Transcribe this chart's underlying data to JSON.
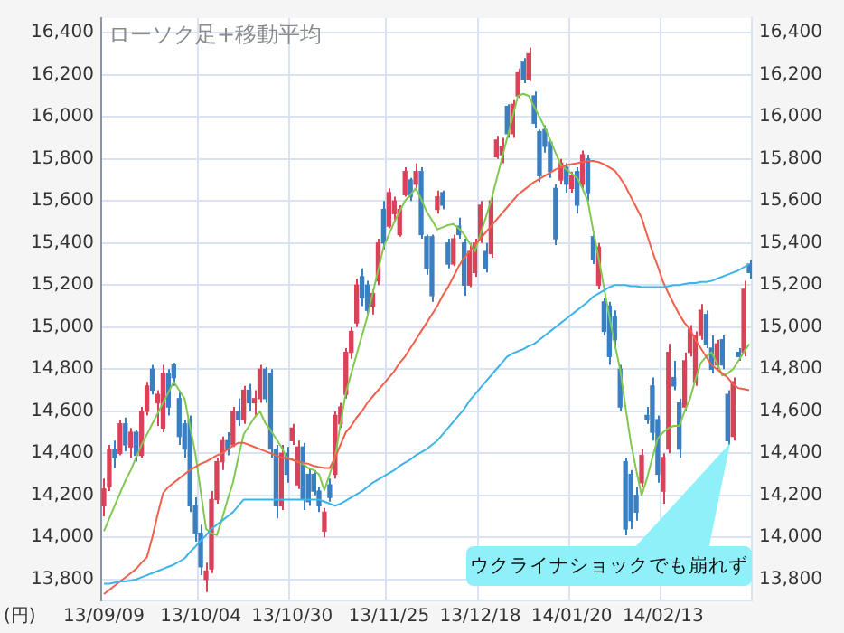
{
  "chart_data": {
    "type": "candlestick",
    "title": "ローソク足+移動平均",
    "ylabel": "(円)",
    "categories": [
      "13/09/09",
      null,
      null,
      null,
      null,
      null,
      null,
      null,
      null,
      null,
      null,
      null,
      null,
      null,
      null,
      null,
      null,
      null,
      "13/10/04",
      null,
      null,
      null,
      null,
      null,
      null,
      null,
      null,
      null,
      null,
      null,
      null,
      null,
      null,
      null,
      null,
      "13/10/30",
      null,
      null,
      null,
      null,
      null,
      null,
      null,
      null,
      null,
      null,
      null,
      null,
      null,
      null,
      null,
      null,
      null,
      "13/11/25",
      null,
      null,
      null,
      null,
      null,
      null,
      null,
      null,
      null,
      null,
      null,
      null,
      null,
      null,
      null,
      null,
      "13/12/18",
      null,
      null,
      null,
      null,
      null,
      null,
      null,
      null,
      null,
      null,
      null,
      null,
      null,
      null,
      null,
      null,
      "14/01/20",
      null,
      null,
      null,
      null,
      null,
      null,
      null,
      null,
      null,
      null,
      null,
      null,
      null,
      null,
      null,
      null,
      "14/02/13",
      null,
      null,
      null,
      null,
      null,
      null,
      null,
      null,
      null,
      null,
      null,
      null,
      null,
      null,
      null,
      null
    ],
    "ohlc": [
      [
        14150,
        14280,
        14100,
        14230
      ],
      [
        14240,
        14440,
        14220,
        14420
      ],
      [
        14420,
        14460,
        14330,
        14380
      ],
      [
        14400,
        14560,
        14390,
        14540
      ],
      [
        14540,
        14570,
        14410,
        14440
      ],
      [
        14430,
        14520,
        14380,
        14500
      ],
      [
        14500,
        14510,
        14360,
        14390
      ],
      [
        14390,
        14620,
        14380,
        14600
      ],
      [
        14600,
        14740,
        14580,
        14720
      ],
      [
        14800,
        14820,
        14680,
        14700
      ],
      [
        14640,
        14700,
        14530,
        14680
      ],
      [
        14520,
        14820,
        14500,
        14780
      ],
      [
        14780,
        14800,
        14580,
        14620
      ],
      [
        14820,
        14830,
        14720,
        14760
      ],
      [
        14660,
        14690,
        14440,
        14480
      ],
      [
        14540,
        14560,
        14380,
        14420
      ],
      [
        14560,
        14580,
        14120,
        14150
      ],
      [
        14150,
        14190,
        13980,
        14020
      ],
      [
        14020,
        14060,
        13820,
        13860
      ],
      [
        13800,
        13880,
        13740,
        13840
      ],
      [
        13850,
        14220,
        13830,
        14180
      ],
      [
        14180,
        14380,
        14160,
        14360
      ],
      [
        14360,
        14480,
        14320,
        14460
      ],
      [
        14460,
        14500,
        14390,
        14420
      ],
      [
        14440,
        14620,
        14430,
        14600
      ],
      [
        14600,
        14660,
        14530,
        14560
      ],
      [
        14560,
        14720,
        14540,
        14700
      ],
      [
        14700,
        14730,
        14600,
        14640
      ],
      [
        14640,
        14700,
        14580,
        14660
      ],
      [
        14660,
        14820,
        14640,
        14800
      ],
      [
        14800,
        14810,
        14640,
        14660
      ],
      [
        14780,
        14800,
        14380,
        14420
      ],
      [
        14420,
        14440,
        14090,
        14150
      ],
      [
        14150,
        14440,
        14130,
        14400
      ],
      [
        14400,
        14430,
        14260,
        14300
      ],
      [
        14460,
        14540,
        14440,
        14520
      ],
      [
        14250,
        14460,
        14230,
        14430
      ],
      [
        14430,
        14450,
        14130,
        14180
      ],
      [
        14300,
        14330,
        14150,
        14170
      ],
      [
        14300,
        14320,
        14200,
        14220
      ],
      [
        14220,
        14240,
        14120,
        14150
      ],
      [
        14030,
        14140,
        14000,
        14120
      ],
      [
        14250,
        14280,
        14170,
        14190
      ],
      [
        14300,
        14600,
        14280,
        14580
      ],
      [
        14540,
        14640,
        14520,
        14620
      ],
      [
        14680,
        14900,
        14660,
        14880
      ],
      [
        14880,
        15000,
        14850,
        14980
      ],
      [
        15020,
        15230,
        15000,
        15200
      ],
      [
        15240,
        15280,
        15100,
        15140
      ],
      [
        15200,
        15220,
        15060,
        15080
      ],
      [
        15100,
        15180,
        15060,
        15160
      ],
      [
        15220,
        15420,
        15200,
        15400
      ],
      [
        15560,
        15600,
        15370,
        15400
      ],
      [
        15480,
        15660,
        15470,
        15640
      ],
      [
        15540,
        15620,
        15500,
        15600
      ],
      [
        15440,
        15580,
        15430,
        15560
      ],
      [
        15630,
        15760,
        15620,
        15740
      ],
      [
        15700,
        15710,
        15600,
        15620
      ],
      [
        15680,
        15780,
        15660,
        15740
      ],
      [
        15740,
        15760,
        15420,
        15440
      ],
      [
        15430,
        15440,
        15250,
        15280
      ],
      [
        15430,
        15440,
        15120,
        15150
      ],
      [
        15560,
        15650,
        15540,
        15620
      ],
      [
        15640,
        15650,
        15560,
        15580
      ],
      [
        15400,
        15420,
        15280,
        15300
      ],
      [
        15300,
        15440,
        15290,
        15420
      ],
      [
        15480,
        15520,
        15420,
        15440
      ],
      [
        15400,
        15420,
        15150,
        15200
      ],
      [
        15200,
        15400,
        15190,
        15360
      ],
      [
        15260,
        15420,
        15240,
        15400
      ],
      [
        15420,
        15600,
        15400,
        15580
      ],
      [
        15360,
        15400,
        15260,
        15280
      ],
      [
        15350,
        15620,
        15330,
        15600
      ],
      [
        15810,
        15910,
        15800,
        15890
      ],
      [
        15820,
        15900,
        15780,
        15860
      ],
      [
        16050,
        16060,
        15900,
        15920
      ],
      [
        15920,
        16080,
        15900,
        16060
      ],
      [
        16100,
        16230,
        16090,
        16210
      ],
      [
        16260,
        16280,
        16160,
        16180
      ],
      [
        16180,
        16330,
        16170,
        16300
      ],
      [
        16100,
        16120,
        15950,
        15970
      ],
      [
        15930,
        15940,
        15690,
        15720
      ],
      [
        15940,
        15960,
        15830,
        15860
      ],
      [
        15880,
        15890,
        15710,
        15740
      ],
      [
        15660,
        15680,
        15390,
        15420
      ],
      [
        15700,
        15800,
        15680,
        15780
      ],
      [
        15760,
        15780,
        15640,
        15680
      ],
      [
        15660,
        15740,
        15640,
        15720
      ],
      [
        15740,
        15760,
        15540,
        15580
      ],
      [
        15680,
        15840,
        15660,
        15820
      ],
      [
        15800,
        15820,
        15600,
        15640
      ],
      [
        15430,
        15440,
        15300,
        15320
      ],
      [
        15200,
        15400,
        15180,
        15380
      ],
      [
        15120,
        15140,
        14960,
        14980
      ],
      [
        15100,
        15120,
        14820,
        14860
      ],
      [
        15050,
        15080,
        14900,
        14940
      ],
      [
        14800,
        14820,
        14600,
        14620
      ],
      [
        14360,
        14380,
        14010,
        14040
      ],
      [
        14300,
        14320,
        14040,
        14080
      ],
      [
        14200,
        14240,
        14080,
        14120
      ],
      [
        14260,
        14420,
        14240,
        14390
      ],
      [
        14580,
        14620,
        14540,
        14560
      ],
      [
        14720,
        14760,
        14460,
        14500
      ],
      [
        14560,
        14580,
        14260,
        14300
      ],
      [
        14220,
        14400,
        14160,
        14380
      ],
      [
        14420,
        14920,
        14400,
        14880
      ],
      [
        14760,
        14840,
        14700,
        14720
      ],
      [
        14640,
        14660,
        14380,
        14420
      ],
      [
        14620,
        14880,
        14600,
        14840
      ],
      [
        14880,
        15010,
        14860,
        14990
      ],
      [
        14740,
        14980,
        14720,
        14960
      ],
      [
        14960,
        15110,
        14940,
        15080
      ],
      [
        15060,
        15080,
        14900,
        14920
      ],
      [
        14900,
        14960,
        14780,
        14800
      ],
      [
        14820,
        14940,
        14800,
        14920
      ],
      [
        14940,
        14960,
        14800,
        14820
      ],
      [
        14680,
        14700,
        14440,
        14460
      ],
      [
        14480,
        14760,
        14460,
        14740
      ],
      [
        14880,
        14900,
        14840,
        14860
      ],
      [
        14880,
        15220,
        14860,
        15180
      ],
      [
        15300,
        15320,
        15230,
        15260
      ]
    ],
    "series": [
      {
        "type": "line",
        "color": "#3cb4e8",
        "values": [
          13780,
          13780,
          13785,
          13790,
          13790,
          13795,
          13800,
          13810,
          13820,
          13830,
          13840,
          13850,
          13860,
          13870,
          13885,
          13900,
          13930,
          13955,
          13985,
          14010,
          14040,
          14060,
          14080,
          14100,
          14120,
          14150,
          14180,
          14180,
          14180,
          14180,
          14180,
          14180,
          14180,
          14180,
          14180,
          14180,
          14180,
          14180,
          14180,
          14180,
          14180,
          14170,
          14160,
          14150,
          14160,
          14175,
          14190,
          14205,
          14220,
          14240,
          14260,
          14275,
          14290,
          14305,
          14320,
          14340,
          14355,
          14370,
          14390,
          14405,
          14420,
          14440,
          14460,
          14490,
          14520,
          14550,
          14580,
          14610,
          14650,
          14680,
          14710,
          14740,
          14770,
          14800,
          14830,
          14860,
          14875,
          14885,
          14895,
          14910,
          14920,
          14940,
          14960,
          14980,
          15000,
          15020,
          15040,
          15060,
          15080,
          15100,
          15120,
          15145,
          15160,
          15175,
          15190,
          15200,
          15200,
          15200,
          15195,
          15195,
          15190,
          15190,
          15190,
          15190,
          15190,
          15195,
          15200,
          15200,
          15205,
          15210,
          15210,
          15215,
          15215,
          15220,
          15230,
          15240,
          15250,
          15260,
          15270,
          15285,
          15300
        ]
      },
      {
        "type": "line",
        "color": "#f0604c",
        "values": [
          13730,
          13750,
          13770,
          13790,
          13810,
          13830,
          13850,
          13880,
          13905,
          14000,
          14110,
          14210,
          14240,
          14260,
          14280,
          14300,
          14320,
          14335,
          14350,
          14360,
          14375,
          14390,
          14400,
          14420,
          14435,
          14450,
          14450,
          14440,
          14430,
          14420,
          14410,
          14400,
          14390,
          14380,
          14375,
          14370,
          14360,
          14355,
          14350,
          14340,
          14335,
          14330,
          14330,
          14380,
          14440,
          14500,
          14530,
          14570,
          14600,
          14640,
          14670,
          14700,
          14730,
          14760,
          14790,
          14830,
          14860,
          14900,
          14940,
          14980,
          15020,
          15060,
          15100,
          15150,
          15190,
          15240,
          15290,
          15330,
          15360,
          15390,
          15420,
          15450,
          15480,
          15510,
          15540,
          15570,
          15600,
          15630,
          15650,
          15670,
          15690,
          15705,
          15720,
          15735,
          15750,
          15760,
          15770,
          15775,
          15780,
          15785,
          15790,
          15790,
          15785,
          15775,
          15760,
          15745,
          15710,
          15670,
          15620,
          15570,
          15520,
          15440,
          15360,
          15290,
          15215,
          15160,
          15110,
          15060,
          15020,
          14990,
          14940,
          14900,
          14860,
          14820,
          14800,
          14780,
          14760,
          14730,
          14710,
          14705,
          14700
        ]
      },
      {
        "type": "line",
        "color": "#80c850",
        "values": [
          14030,
          14090,
          14150,
          14210,
          14270,
          14320,
          14380,
          14440,
          14490,
          14540,
          14590,
          14640,
          14690,
          14740,
          14700,
          14660,
          14530,
          14400,
          14220,
          14040,
          14020,
          14010,
          14090,
          14180,
          14260,
          14380,
          14490,
          14530,
          14570,
          14600,
          14545,
          14510,
          14470,
          14430,
          14380,
          14370,
          14360,
          14350,
          14330,
          14320,
          14300,
          14225,
          14300,
          14380,
          14540,
          14690,
          14780,
          14870,
          14960,
          15050,
          15160,
          15270,
          15380,
          15440,
          15500,
          15550,
          15600,
          15630,
          15660,
          15610,
          15550,
          15510,
          15465,
          15475,
          15485,
          15490,
          15470,
          15440,
          15400,
          15360,
          15440,
          15520,
          15600,
          15700,
          15800,
          15900,
          16000,
          16100,
          16110,
          16100,
          16050,
          16000,
          15950,
          15890,
          15830,
          15770,
          15750,
          15730,
          15710,
          15660,
          15600,
          15460,
          15330,
          15190,
          15050,
          14920,
          14800,
          14620,
          14450,
          14320,
          14200,
          14280,
          14380,
          14470,
          14500,
          14520,
          14530,
          14530,
          14600,
          14660,
          14750,
          14830,
          14860,
          14880,
          14830,
          14770,
          14780,
          14800,
          14840,
          14880,
          14920
        ]
      }
    ],
    "ylim": [
      13700,
      16470
    ],
    "yticks": [
      {
        "value": 13800,
        "label": "13,800"
      },
      {
        "value": 14000,
        "label": "14,000"
      },
      {
        "value": 14200,
        "label": "14,200"
      },
      {
        "value": 14400,
        "label": "14,400"
      },
      {
        "value": 14600,
        "label": "14,600"
      },
      {
        "value": 14800,
        "label": "14,800"
      },
      {
        "value": 15000,
        "label": "15,000"
      },
      {
        "value": 15200,
        "label": "15,200"
      },
      {
        "value": 15400,
        "label": "15,400"
      },
      {
        "value": 15600,
        "label": "15,600"
      },
      {
        "value": 15800,
        "label": "15,800"
      },
      {
        "value": 16000,
        "label": "16,000"
      },
      {
        "value": 16200,
        "label": "16,200"
      },
      {
        "value": 16400,
        "label": "16,400"
      }
    ],
    "y2lim": [
      13700,
      16470
    ],
    "y2ticks": [
      {
        "value": 13800,
        "label": "13,800"
      },
      {
        "value": 14000,
        "label": "14,000"
      },
      {
        "value": 14200,
        "label": "14,200"
      },
      {
        "value": 14400,
        "label": "14,400"
      },
      {
        "value": 14600,
        "label": "14,600"
      },
      {
        "value": 14800,
        "label": "14,800"
      },
      {
        "value": 15000,
        "label": "15,000"
      },
      {
        "value": 15200,
        "label": "15,200"
      },
      {
        "value": 15400,
        "label": "15,400"
      },
      {
        "value": 15600,
        "label": "15,600"
      },
      {
        "value": 15800,
        "label": "15,800"
      },
      {
        "value": 16000,
        "label": "16,000"
      },
      {
        "value": 16200,
        "label": "16,200"
      },
      {
        "value": 16400,
        "label": "16,400"
      }
    ],
    "grid": true,
    "annotations": [
      "ウクライナショックでも崩れず"
    ]
  }
}
